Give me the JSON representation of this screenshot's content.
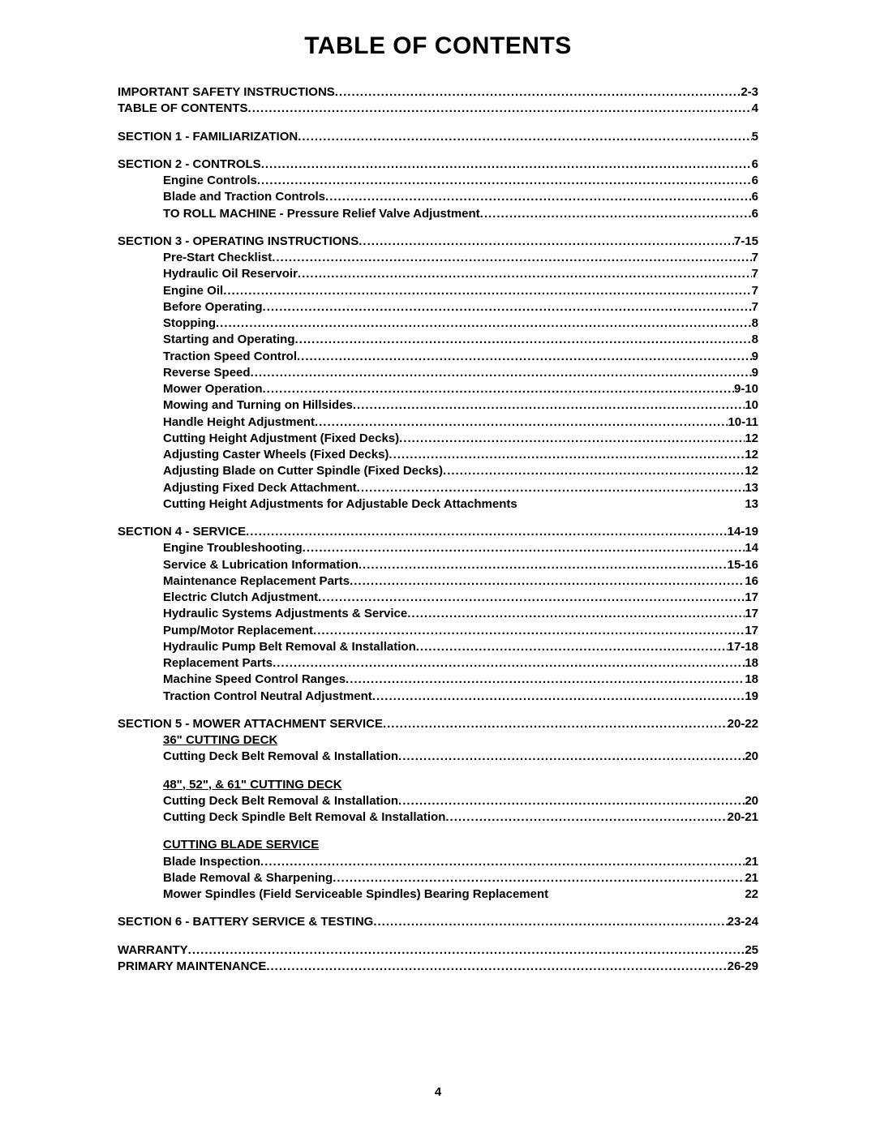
{
  "title": "TABLE OF CONTENTS",
  "page_number": "4",
  "groups": [
    {
      "entries": [
        {
          "label": "IMPORTANT SAFETY INSTRUCTIONS",
          "page": "2-3",
          "indent": false
        },
        {
          "label": "TABLE OF CONTENTS",
          "page": "4",
          "indent": false
        }
      ]
    },
    {
      "entries": [
        {
          "label": "SECTION 1 - FAMILIARIZATION",
          "page": "5",
          "indent": false
        }
      ]
    },
    {
      "entries": [
        {
          "label": "SECTION 2 - CONTROLS",
          "page": "6",
          "indent": false
        },
        {
          "label": "Engine Controls",
          "page": "6",
          "indent": true
        },
        {
          "label": "Blade and Traction Controls",
          "page": "6",
          "indent": true
        },
        {
          "label": "TO ROLL MACHINE - Pressure Relief Valve Adjustment",
          "page": "6",
          "indent": true
        }
      ]
    },
    {
      "entries": [
        {
          "label": "SECTION 3 - OPERATING INSTRUCTIONS",
          "page": "7-15",
          "indent": false
        },
        {
          "label": "Pre-Start Checklist",
          "page": "7",
          "indent": true
        },
        {
          "label": "Hydraulic Oil Reservoir",
          "page": "7",
          "indent": true
        },
        {
          "label": "Engine Oil",
          "page": "7",
          "indent": true
        },
        {
          "label": "Before Operating",
          "page": "7",
          "indent": true
        },
        {
          "label": "Stopping",
          "page": "8",
          "indent": true
        },
        {
          "label": "Starting and Operating",
          "page": "8",
          "indent": true
        },
        {
          "label": "Traction Speed Control",
          "page": "9",
          "indent": true
        },
        {
          "label": "Reverse Speed",
          "page": "9",
          "indent": true
        },
        {
          "label": "Mower Operation",
          "page": "9-10",
          "indent": true
        },
        {
          "label": "Mowing and Turning on Hillsides",
          "page": "10",
          "indent": true
        },
        {
          "label": "Handle Height Adjustment",
          "page": "10-11",
          "indent": true
        },
        {
          "label": "Cutting Height Adjustment (Fixed Decks)",
          "page": "12",
          "indent": true
        },
        {
          "label": "Adjusting Caster Wheels (Fixed Decks)",
          "page": "12",
          "indent": true
        },
        {
          "label": "Adjusting Blade on Cutter Spindle (Fixed Decks)",
          "page": "12",
          "indent": true
        },
        {
          "label": "Adjusting Fixed Deck Attachment",
          "page": "13",
          "indent": true
        },
        {
          "label": "Cutting Height Adjustments for Adjustable Deck Attachments",
          "page": "13",
          "indent": true,
          "nodots": true
        }
      ]
    },
    {
      "entries": [
        {
          "label": "SECTION 4 - SERVICE",
          "page": "14-19",
          "indent": false
        },
        {
          "label": "Engine Troubleshooting",
          "page": "14",
          "indent": true
        },
        {
          "label": "Service & Lubrication Information",
          "page": "15-16",
          "indent": true
        },
        {
          "label": "Maintenance Replacement Parts",
          "page": "16",
          "indent": true
        },
        {
          "label": "Electric Clutch Adjustment",
          "page": "17",
          "indent": true
        },
        {
          "label": "Hydraulic Systems Adjustments & Service",
          "page": "17",
          "indent": true
        },
        {
          "label": "Pump/Motor Replacement",
          "page": "17",
          "indent": true
        },
        {
          "label": "Hydraulic Pump Belt Removal & Installation",
          "page": "17-18",
          "indent": true
        },
        {
          "label": "Replacement Parts",
          "page": "18",
          "indent": true
        },
        {
          "label": "Machine Speed Control Ranges",
          "page": "18",
          "indent": true
        },
        {
          "label": "Traction Control Neutral Adjustment",
          "page": "19",
          "indent": true
        }
      ]
    },
    {
      "entries": [
        {
          "label": "SECTION 5 - MOWER ATTACHMENT SERVICE",
          "page": "20-22",
          "indent": false
        },
        {
          "subheading": "36\" CUTTING DECK"
        },
        {
          "label": "Cutting Deck Belt Removal & Installation",
          "page": "20",
          "indent": true
        },
        {
          "spacer": true
        },
        {
          "subheading": "48\", 52\", & 61\" CUTTING DECK"
        },
        {
          "label": "Cutting Deck Belt Removal & Installation",
          "page": "20",
          "indent": true
        },
        {
          "label": "Cutting Deck Spindle Belt Removal & Installation",
          "page": " 20-21",
          "indent": true
        },
        {
          "spacer": true
        },
        {
          "subheading": "CUTTING BLADE SERVICE"
        },
        {
          "label": "Blade Inspection",
          "page": "21",
          "indent": true
        },
        {
          "label": "Blade Removal & Sharpening",
          "page": "21",
          "indent": true
        },
        {
          "label": "Mower Spindles (Field Serviceable Spindles) Bearing Replacement",
          "page": "22",
          "indent": true,
          "nodots": true
        }
      ]
    },
    {
      "entries": [
        {
          "label": "SECTION 6 - BATTERY SERVICE & TESTING",
          "page": " 23-24",
          "indent": false
        }
      ]
    },
    {
      "entries": [
        {
          "label": "WARRANTY",
          "page": "25",
          "indent": false
        },
        {
          "label": "PRIMARY MAINTENANCE",
          "page": " 26-29",
          "indent": false
        }
      ]
    }
  ]
}
